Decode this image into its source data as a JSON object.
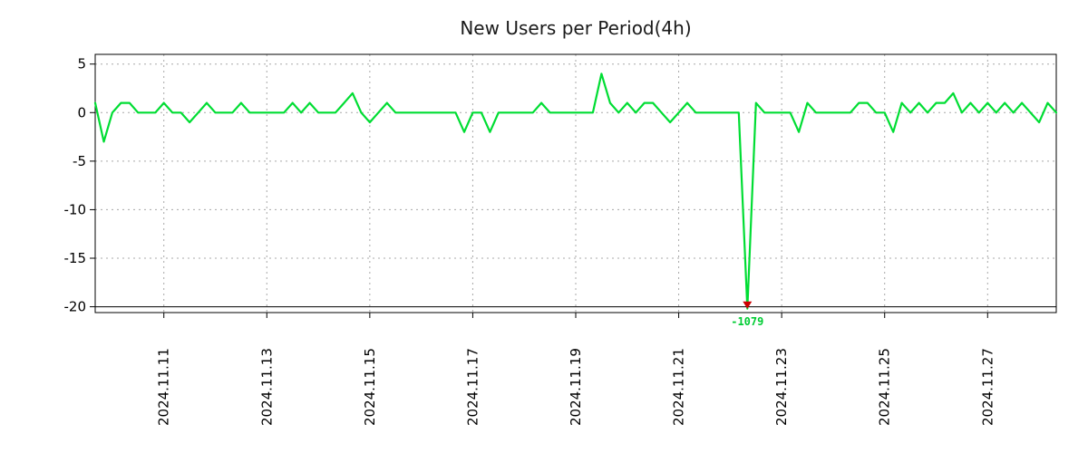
{
  "chart_data": {
    "type": "line",
    "title": "New Users per Period(4h)",
    "background": "#ffffff",
    "series_color": "#00dd33",
    "grid": true,
    "ylim": [
      -20.6,
      6.0
    ],
    "y_ticks": [
      5,
      0,
      -5,
      -10,
      -15,
      -20
    ],
    "x_ticks": [
      {
        "index": 8,
        "label": "2024.11.11"
      },
      {
        "index": 20,
        "label": "2024.11.13"
      },
      {
        "index": 32,
        "label": "2024.11.15"
      },
      {
        "index": 44,
        "label": "2024.11.17"
      },
      {
        "index": 56,
        "label": "2024.11.19"
      },
      {
        "index": 68,
        "label": "2024.11.21"
      },
      {
        "index": 80,
        "label": "2024.11.23"
      },
      {
        "index": 92,
        "label": "2024.11.25"
      },
      {
        "index": 104,
        "label": "2024.11.27"
      }
    ],
    "values": [
      1,
      -3,
      0,
      1,
      1,
      0,
      0,
      0,
      1,
      0,
      0,
      -1,
      0,
      1,
      0,
      0,
      0,
      1,
      0,
      0,
      0,
      0,
      0,
      1,
      0,
      1,
      0,
      0,
      0,
      1,
      2,
      0,
      -1,
      0,
      1,
      0,
      0,
      0,
      0,
      0,
      0,
      0,
      0,
      -2,
      0,
      0,
      -2,
      0,
      0,
      0,
      0,
      0,
      1,
      0,
      0,
      0,
      0,
      0,
      0,
      4,
      1,
      0,
      1,
      0,
      1,
      1,
      0,
      -1,
      0,
      1,
      0,
      0,
      0,
      0,
      0,
      0,
      -1079,
      1,
      0,
      0,
      0,
      0,
      -2,
      1,
      0,
      0,
      0,
      0,
      0,
      1,
      1,
      0,
      0,
      -2,
      1,
      0,
      1,
      0,
      1,
      1,
      2,
      0,
      1,
      0,
      1,
      0,
      1,
      0,
      1,
      0,
      -1,
      1,
      0
    ],
    "min_annotation": {
      "label": "-1079",
      "value": -1079,
      "text_color": "#00cc33",
      "marker_color": "#cc0000"
    }
  }
}
